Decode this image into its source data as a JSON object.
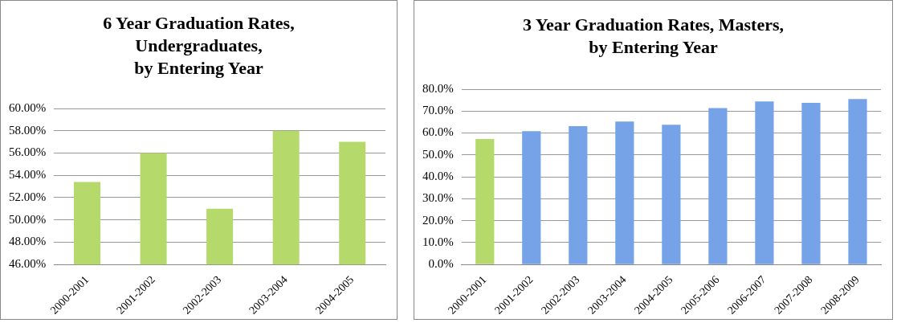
{
  "chart_data": [
    {
      "type": "bar",
      "title": "6 Year Graduation Rates, Undergraduates, by Entering Year",
      "categories": [
        "2000-2001",
        "2001-2002",
        "2002-2003",
        "2003-2004",
        "2004-2005"
      ],
      "values": [
        53.4,
        56.0,
        51.0,
        58.0,
        57.0
      ],
      "color": "#b5d96a",
      "ylim": [
        46,
        60
      ],
      "yticks": [
        {
          "value": 46,
          "label": "46.00%"
        },
        {
          "value": 48,
          "label": "48.00%"
        },
        {
          "value": 50,
          "label": "50.00%"
        },
        {
          "value": 52,
          "label": "52.00%"
        },
        {
          "value": 54,
          "label": "54.00%"
        },
        {
          "value": 56,
          "label": "56.00%"
        },
        {
          "value": 58,
          "label": "58.00%"
        },
        {
          "value": 60,
          "label": "60.00%"
        }
      ],
      "grid": "y",
      "legend": false
    },
    {
      "type": "bar",
      "title": "3 Year Graduation Rates, Masters, by Entering Year",
      "categories": [
        "2000-2001",
        "2001-2002",
        "2002-2003",
        "2003-2004",
        "2004-2005",
        "2005-2006",
        "2006-2007",
        "2007-2008",
        "2008-2009"
      ],
      "values": [
        57.3,
        60.8,
        63.1,
        65.2,
        63.8,
        71.4,
        74.4,
        73.8,
        75.5
      ],
      "colors": [
        "#b5d96a",
        "#76a3e8",
        "#76a3e8",
        "#76a3e8",
        "#76a3e8",
        "#76a3e8",
        "#76a3e8",
        "#76a3e8",
        "#76a3e8"
      ],
      "ylim": [
        0,
        80
      ],
      "yticks": [
        {
          "value": 0,
          "label": "0.0%"
        },
        {
          "value": 10,
          "label": "10.0%"
        },
        {
          "value": 20,
          "label": "20.0%"
        },
        {
          "value": 30,
          "label": "30.0%"
        },
        {
          "value": 40,
          "label": "40.0%"
        },
        {
          "value": 50,
          "label": "50.0%"
        },
        {
          "value": 60,
          "label": "60.0%"
        },
        {
          "value": 70,
          "label": "70.0%"
        },
        {
          "value": 80,
          "label": "80.0%"
        }
      ],
      "grid": "y",
      "legend": false
    }
  ]
}
